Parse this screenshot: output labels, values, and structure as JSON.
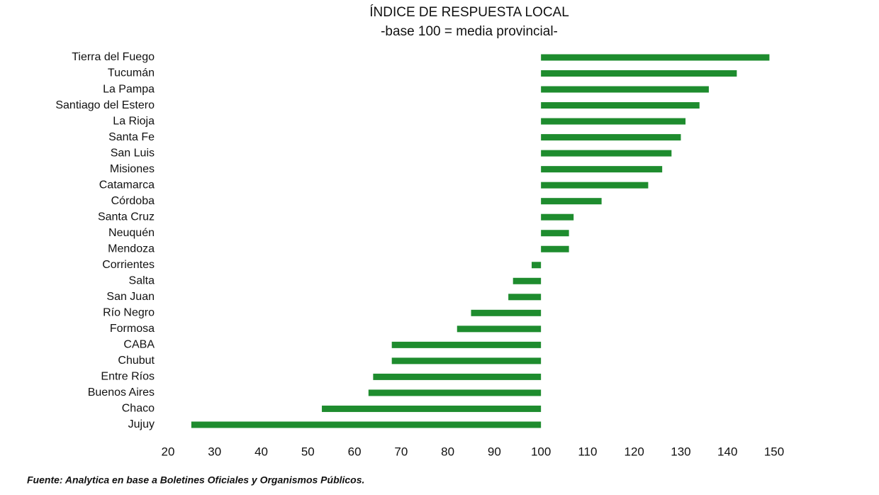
{
  "chart_data": {
    "type": "bar",
    "orientation": "horizontal",
    "title": "ÍNDICE DE RESPUESTA LOCAL",
    "subtitle": "-base 100 = media provincial-",
    "categories": [
      "Tierra del Fuego",
      "Tucumán",
      "La Pampa",
      "Santiago del Estero",
      "La Rioja",
      "Santa Fe",
      "San Luis",
      "Misiones",
      "Catamarca",
      "Córdoba",
      "Santa Cruz",
      "Neuquén",
      "Mendoza",
      "Corrientes",
      "Salta",
      "San Juan",
      "Río Negro",
      "Formosa",
      "CABA",
      "Chubut",
      "Entre Ríos",
      "Buenos Aires",
      "Chaco",
      "Jujuy"
    ],
    "values": [
      149,
      142,
      136,
      134,
      131,
      130,
      128,
      126,
      123,
      113,
      107,
      106,
      106,
      98,
      94,
      93,
      85,
      82,
      68,
      68,
      64,
      63,
      53,
      25
    ],
    "bar_base": 100,
    "color": "#1e8c2e",
    "xlim": [
      20,
      150
    ],
    "xticks": [
      20,
      30,
      40,
      50,
      60,
      70,
      80,
      90,
      100,
      110,
      120,
      130,
      140,
      150
    ],
    "grid": false,
    "source": "Fuente: Analytica en base a Boletines Oficiales y Organismos Públicos."
  }
}
